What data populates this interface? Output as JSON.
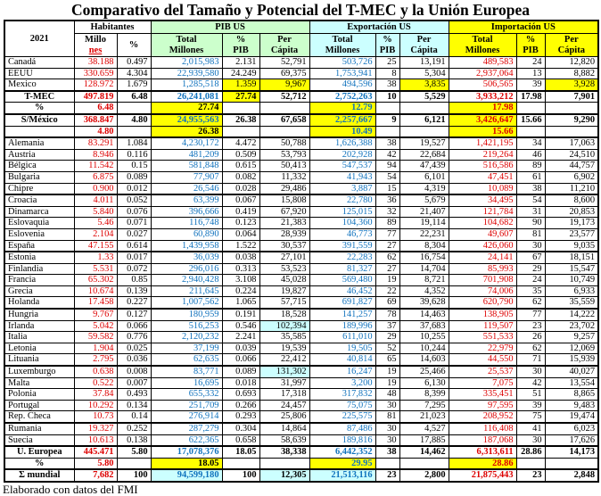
{
  "title": "Comparativo del Tamaño y Potencial del T-MEC y la Unión Europea",
  "footer": "Elaborado con datos del FMI",
  "colors": {
    "red_text": "#dd0000",
    "blue_text": "#1072bd",
    "pib_header_bg": "#ccffcc",
    "exportacion_header_bg": "#ccffff",
    "importacion_header_bg": "#ffff00",
    "highlight_yellow": "#ffff00",
    "highlight_cyan": "#ccffff",
    "border": "#000000"
  },
  "table": {
    "year": "2021",
    "groups": {
      "habitantes": "Habitantes",
      "pib": "PIB US",
      "exportacion": "Exportación US",
      "importacion": "Importación US"
    },
    "sub": {
      "millones_l1": "Millo",
      "millones_l2": "nes",
      "pct": "%",
      "total_l1": "Total",
      "total_l2": "Millones",
      "pctpib_l1": "%",
      "pctpib_l2": "PIB",
      "percap_l1": "Per",
      "percap_l2": "Cápita"
    },
    "column_colors": {
      "0": "red",
      "2": "blue",
      "5": "blue",
      "8": "red"
    },
    "hl_colors": {
      "Y": "#ffff00",
      "C": "#ccffff"
    },
    "rows": [
      {
        "label": "Canadá",
        "values": [
          "38.188",
          "0.497",
          "2,015,983",
          "2.131",
          "52,791",
          "503,726",
          "25",
          "13,191",
          "489,583",
          "24",
          "12,820"
        ]
      },
      {
        "label": "EEUU",
        "values": [
          "330.659",
          "4.304",
          "22,939,580",
          "24.249",
          "69,375",
          "1,753,941",
          "8",
          "5,304",
          "2,937,064",
          "13",
          "8,882"
        ]
      },
      {
        "label": "Mexico",
        "values": [
          "128.972",
          "1.679",
          "1,285,518",
          "1.359",
          "9,967",
          "494,596",
          "38",
          "3,835",
          "506,565",
          "39",
          "3,928"
        ],
        "hl": {
          "3": "Y",
          "4": "Y",
          "7": "Y",
          "10": "Y"
        }
      },
      {
        "label": "T-MEC",
        "bold": true,
        "center": true,
        "thick": true,
        "values": [
          "497.819",
          "6.48",
          "26,241,081",
          "27.74",
          "52,712",
          "2,752,263",
          "10",
          "5,529",
          "3,933,212",
          "17.98",
          "7,901"
        ],
        "hl": {
          "3": "Y"
        }
      },
      {
        "label": "%",
        "bold": true,
        "center": true,
        "values": [
          "6.48",
          "",
          "27.74",
          "",
          "",
          "12.79",
          "",
          "",
          "17.98",
          "",
          ""
        ],
        "hl": {
          "2": "Y",
          "5": "Y",
          "8": "Y"
        },
        "ov": {
          "2": "black"
        }
      },
      {
        "label": "S/México",
        "bold": true,
        "center": true,
        "thick": true,
        "values": [
          "368.847",
          "4.80",
          "24,955,563",
          "26.38",
          "67,658",
          "2,257,667",
          "9",
          "6,121",
          "3,426,647",
          "15.66",
          "9,290"
        ],
        "hl": {
          "2": "Y",
          "5": "Y",
          "8": "Y"
        }
      },
      {
        "label": "",
        "bold": true,
        "center": true,
        "values": [
          "4.80",
          "",
          "26.38",
          "",
          "",
          "10.49",
          "",
          "",
          "15.66",
          "",
          ""
        ],
        "hl": {
          "2": "Y",
          "5": "Y",
          "8": "Y"
        },
        "ov": {
          "2": "black"
        }
      },
      {
        "label": "Alemania",
        "thick": true,
        "values": [
          "83.291",
          "1.084",
          "4,230,172",
          "4.472",
          "50,788",
          "1,626,388",
          "38",
          "19,527",
          "1,421,195",
          "34",
          "17,063"
        ]
      },
      {
        "label": "Austria",
        "values": [
          "8.946",
          "0.116",
          "481,209",
          "0.509",
          "53,793",
          "202,928",
          "42",
          "22,684",
          "219,264",
          "46",
          "24,510"
        ]
      },
      {
        "label": "Bélgica",
        "values": [
          "11.542",
          "0.15",
          "581,848",
          "0.615",
          "50,413",
          "547,537",
          "94",
          "47,439",
          "516,586",
          "89",
          "44,757"
        ]
      },
      {
        "label": "Bulgaria",
        "values": [
          "6.875",
          "0.089",
          "77,907",
          "0.082",
          "11,332",
          "41,943",
          "54",
          "6,101",
          "47,451",
          "61",
          "6,902"
        ]
      },
      {
        "label": "Chipre",
        "values": [
          "0.900",
          "0.012",
          "26,546",
          "0.028",
          "29,486",
          "3,887",
          "15",
          "4,319",
          "10,089",
          "38",
          "11,210"
        ]
      },
      {
        "label": "Croacia",
        "thick": true,
        "values": [
          "4.011",
          "0.052",
          "63,399",
          "0.067",
          "15,808",
          "22,780",
          "36",
          "5,679",
          "34,495",
          "54",
          "8,600"
        ]
      },
      {
        "label": "Dinamarca",
        "values": [
          "5.840",
          "0.076",
          "396,666",
          "0.419",
          "67,920",
          "125,015",
          "32",
          "21,407",
          "121,784",
          "31",
          "20,853"
        ]
      },
      {
        "label": "Eslovaquia",
        "values": [
          "5.46",
          "0.071",
          "116,748",
          "0.123",
          "21,383",
          "104,360",
          "89",
          "19,114",
          "104,682",
          "90",
          "19,173"
        ]
      },
      {
        "label": "Eslovenia",
        "values": [
          "2.104",
          "0.027",
          "60,890",
          "0.064",
          "28,939",
          "46,773",
          "77",
          "22,231",
          "49,607",
          "81",
          "23,577"
        ]
      },
      {
        "label": "España",
        "values": [
          "47.155",
          "0.614",
          "1,439,958",
          "1.522",
          "30,537",
          "391,559",
          "27",
          "8,304",
          "426,060",
          "30",
          "9,035"
        ]
      },
      {
        "label": "Estonia",
        "thick": true,
        "values": [
          "1.33",
          "0.017",
          "36,039",
          "0.038",
          "27,101",
          "22,283",
          "62",
          "16,754",
          "24,141",
          "67",
          "18,151"
        ]
      },
      {
        "label": "Finlandia",
        "values": [
          "5.531",
          "0.072",
          "296,016",
          "0.313",
          "53,523",
          "81,327",
          "27",
          "14,704",
          "85,993",
          "29",
          "15,547"
        ]
      },
      {
        "label": "Francia",
        "values": [
          "65.302",
          "0.85",
          "2,940,428",
          "3.108",
          "45,028",
          "569,480",
          "19",
          "8,721",
          "701,908",
          "24",
          "10,749"
        ]
      },
      {
        "label": "Grecia",
        "values": [
          "10.674",
          "0.139",
          "211,645",
          "0.224",
          "19,827",
          "46,452",
          "22",
          "4,352",
          "74,006",
          "35",
          "6,933"
        ]
      },
      {
        "label": "Holanda",
        "values": [
          "17.458",
          "0.227",
          "1,007,562",
          "1.065",
          "57,715",
          "691,827",
          "69",
          "39,628",
          "620,790",
          "62",
          "35,559"
        ]
      },
      {
        "label": "Hungria",
        "thick": true,
        "values": [
          "9.767",
          "0.127",
          "180,959",
          "0.191",
          "18,528",
          "141,257",
          "78",
          "14,463",
          "138,905",
          "77",
          "14,222"
        ]
      },
      {
        "label": "Irlanda",
        "values": [
          "5.042",
          "0.066",
          "516,253",
          "0.546",
          "102,394",
          "189,996",
          "37",
          "37,683",
          "119,507",
          "23",
          "23,702"
        ],
        "hl": {
          "4": "C"
        }
      },
      {
        "label": "Italia",
        "values": [
          "59.582",
          "0.776",
          "2,120,232",
          "2.241",
          "35,585",
          "611,010",
          "29",
          "10,255",
          "551,533",
          "26",
          "9,257"
        ]
      },
      {
        "label": "Letonia",
        "values": [
          "1.904",
          "0.025",
          "37,199",
          "0.039",
          "19,539",
          "19,505",
          "52",
          "10,244",
          "22,979",
          "62",
          "12,069"
        ]
      },
      {
        "label": "Lituania",
        "values": [
          "2.795",
          "0.036",
          "62,635",
          "0.066",
          "22,412",
          "40,814",
          "65",
          "14,603",
          "44,550",
          "71",
          "15,939"
        ]
      },
      {
        "label": "Luxemburgo",
        "thick": true,
        "values": [
          "0.638",
          "0.008",
          "83,771",
          "0.089",
          "131,302",
          "16,247",
          "19",
          "25,466",
          "25,537",
          "30",
          "40,027"
        ],
        "hl": {
          "4": "C"
        }
      },
      {
        "label": "Malta",
        "values": [
          "0.522",
          "0.007",
          "16,695",
          "0.018",
          "31,997",
          "3,200",
          "19",
          "6,130",
          "7,075",
          "42",
          "13,554"
        ]
      },
      {
        "label": "Polonia",
        "values": [
          "37.84",
          "0.493",
          "655,332",
          "0.693",
          "17,318",
          "317,832",
          "48",
          "8,399",
          "335,451",
          "51",
          "8,865"
        ]
      },
      {
        "label": "Portugal",
        "values": [
          "10.292",
          "0.134",
          "251,709",
          "0.266",
          "24,457",
          "75,075",
          "30",
          "7,295",
          "97,595",
          "39",
          "9,483"
        ]
      },
      {
        "label": "Rep. Checa",
        "values": [
          "10.73",
          "0.14",
          "276,914",
          "0.293",
          "25,806",
          "225,575",
          "81",
          "21,023",
          "208,952",
          "75",
          "19,474"
        ]
      },
      {
        "label": "Rumania",
        "thick": true,
        "values": [
          "19.327",
          "0.252",
          "287,279",
          "0.304",
          "14,864",
          "87,486",
          "30",
          "4,527",
          "116,408",
          "41",
          "6,023"
        ]
      },
      {
        "label": "Suecia",
        "values": [
          "10.613",
          "0.138",
          "622,365",
          "0.658",
          "58,639",
          "189,816",
          "30",
          "17,885",
          "187,068",
          "30",
          "17,626"
        ]
      },
      {
        "label": "U. Europea",
        "bold": true,
        "center": true,
        "thick": true,
        "values": [
          "445.471",
          "5.80",
          "17,078,376",
          "18.05",
          "38,338",
          "6,442,352",
          "38",
          "14,462",
          "6,313,611",
          "28.86",
          "14,173"
        ]
      },
      {
        "label": "%",
        "bold": true,
        "center": true,
        "values": [
          "5.80",
          "",
          "18.05",
          "",
          "",
          "29.95",
          "",
          "",
          "28.86",
          "",
          ""
        ],
        "hl": {
          "2": "Y",
          "5": "Y",
          "8": "Y"
        },
        "ov": {
          "2": "black"
        }
      },
      {
        "label": "Σ mundial",
        "bold": true,
        "center": true,
        "thick": true,
        "values": [
          "7,682",
          "100",
          "94,599,180",
          "100",
          "12,305",
          "21,513,116",
          "23",
          "2,800",
          "21,875,443",
          "23",
          "2,848"
        ],
        "hl": {
          "2": "C",
          "4": "C",
          "5": "C"
        }
      }
    ]
  }
}
